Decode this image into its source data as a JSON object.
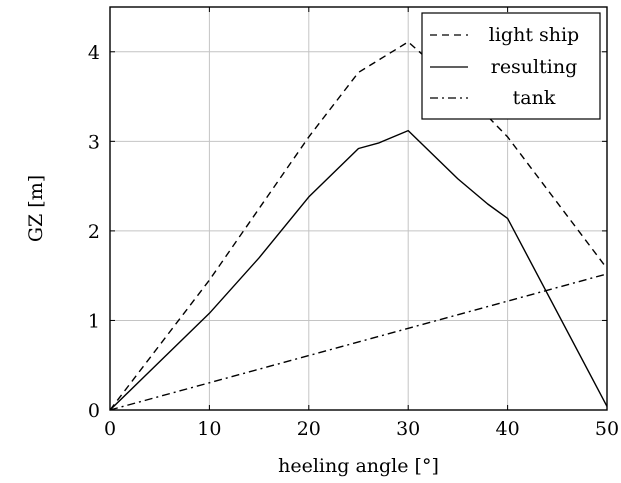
{
  "chart_data": {
    "type": "line",
    "xlabel": "heeling angle [°]",
    "ylabel": "GZ [m]",
    "xlim": [
      0,
      50
    ],
    "ylim": [
      0,
      4.5
    ],
    "x_ticks": [
      0,
      10,
      20,
      30,
      40,
      50
    ],
    "y_ticks": [
      0,
      1,
      2,
      3,
      4
    ],
    "grid": true,
    "legend_position": "top-right",
    "series": [
      {
        "name": "light ship",
        "style": "dashed",
        "color": "#000000",
        "x": [
          0,
          10,
          20,
          25,
          30,
          35,
          40,
          50
        ],
        "y": [
          0,
          1.45,
          3.05,
          3.77,
          4.11,
          3.62,
          3.05,
          1.58
        ]
      },
      {
        "name": "resulting",
        "style": "solid",
        "color": "#000000",
        "x": [
          0,
          10,
          15,
          20,
          25,
          27,
          30,
          35,
          38,
          40,
          50
        ],
        "y": [
          0,
          1.08,
          1.7,
          2.38,
          2.92,
          2.98,
          3.12,
          2.58,
          2.3,
          2.14,
          0.04
        ]
      },
      {
        "name": "tank",
        "style": "dashdot",
        "color": "#000000",
        "x": [
          0,
          50
        ],
        "y": [
          0,
          1.52
        ]
      }
    ]
  }
}
